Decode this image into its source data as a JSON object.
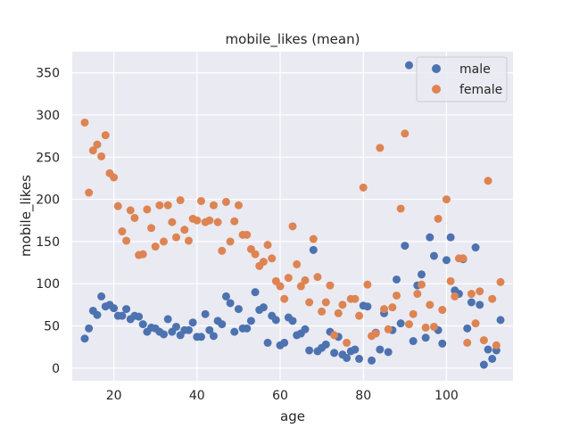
{
  "chart_data": {
    "type": "scatter",
    "title": "mobile_likes (mean)",
    "xlabel": "age",
    "ylabel": "mobile_likes",
    "xlim": [
      10,
      116
    ],
    "ylim": [
      -15,
      375
    ],
    "xticks": [
      20,
      40,
      60,
      80,
      100
    ],
    "yticks": [
      0,
      50,
      100,
      150,
      200,
      250,
      300,
      350
    ],
    "grid": true,
    "legend_position": "top-right",
    "background_color": "#eaeaf2",
    "series": [
      {
        "name": "male",
        "color": "#4c72b0",
        "points": [
          [
            13,
            35
          ],
          [
            14,
            47
          ],
          [
            15,
            68
          ],
          [
            16,
            63
          ],
          [
            17,
            85
          ],
          [
            18,
            73
          ],
          [
            19,
            75
          ],
          [
            20,
            71
          ],
          [
            21,
            62
          ],
          [
            22,
            62
          ],
          [
            23,
            70
          ],
          [
            24,
            58
          ],
          [
            25,
            62
          ],
          [
            26,
            61
          ],
          [
            27,
            52
          ],
          [
            28,
            43
          ],
          [
            29,
            48
          ],
          [
            30,
            47
          ],
          [
            31,
            43
          ],
          [
            32,
            40
          ],
          [
            33,
            58
          ],
          [
            34,
            43
          ],
          [
            35,
            49
          ],
          [
            36,
            39
          ],
          [
            37,
            45
          ],
          [
            38,
            45
          ],
          [
            39,
            54
          ],
          [
            40,
            37
          ],
          [
            41,
            37
          ],
          [
            42,
            64
          ],
          [
            43,
            45
          ],
          [
            44,
            38
          ],
          [
            45,
            56
          ],
          [
            46,
            52
          ],
          [
            47,
            85
          ],
          [
            48,
            77
          ],
          [
            49,
            43
          ],
          [
            50,
            70
          ],
          [
            51,
            47
          ],
          [
            52,
            47
          ],
          [
            53,
            56
          ],
          [
            54,
            90
          ],
          [
            55,
            69
          ],
          [
            56,
            72
          ],
          [
            57,
            30
          ],
          [
            58,
            62
          ],
          [
            59,
            57
          ],
          [
            60,
            27
          ],
          [
            61,
            30
          ],
          [
            62,
            60
          ],
          [
            63,
            56
          ],
          [
            64,
            39
          ],
          [
            65,
            41
          ],
          [
            66,
            46
          ],
          [
            67,
            21
          ],
          [
            68,
            140
          ],
          [
            69,
            20
          ],
          [
            70,
            24
          ],
          [
            71,
            28
          ],
          [
            72,
            43
          ],
          [
            73,
            18
          ],
          [
            74,
            37
          ],
          [
            75,
            16
          ],
          [
            76,
            12
          ],
          [
            77,
            20
          ],
          [
            78,
            22
          ],
          [
            79,
            11
          ],
          [
            80,
            74
          ],
          [
            81,
            73
          ],
          [
            82,
            9
          ],
          [
            83,
            42
          ],
          [
            84,
            22
          ],
          [
            85,
            65
          ],
          [
            86,
            19
          ],
          [
            87,
            45
          ],
          [
            88,
            105
          ],
          [
            89,
            53
          ],
          [
            90,
            145
          ],
          [
            91,
            359
          ],
          [
            92,
            32
          ],
          [
            93,
            98
          ],
          [
            94,
            111
          ],
          [
            95,
            36
          ],
          [
            96,
            155
          ],
          [
            97,
            133
          ],
          [
            98,
            45
          ],
          [
            99,
            29
          ],
          [
            100,
            128
          ],
          [
            101,
            155
          ],
          [
            102,
            92
          ],
          [
            103,
            88
          ],
          [
            104,
            129
          ],
          [
            105,
            47
          ],
          [
            106,
            78
          ],
          [
            107,
            143
          ],
          [
            108,
            75
          ],
          [
            109,
            4
          ],
          [
            110,
            22
          ],
          [
            111,
            11
          ],
          [
            112,
            21
          ],
          [
            113,
            57
          ]
        ]
      },
      {
        "name": "female",
        "color": "#dd8452",
        "points": [
          [
            13,
            291
          ],
          [
            14,
            208
          ],
          [
            15,
            258
          ],
          [
            16,
            265
          ],
          [
            17,
            251
          ],
          [
            18,
            276
          ],
          [
            19,
            231
          ],
          [
            20,
            226
          ],
          [
            21,
            192
          ],
          [
            22,
            162
          ],
          [
            23,
            151
          ],
          [
            24,
            187
          ],
          [
            25,
            178
          ],
          [
            26,
            134
          ],
          [
            27,
            135
          ],
          [
            28,
            188
          ],
          [
            29,
            166
          ],
          [
            30,
            144
          ],
          [
            31,
            193
          ],
          [
            32,
            150
          ],
          [
            33,
            193
          ],
          [
            34,
            173
          ],
          [
            35,
            155
          ],
          [
            36,
            199
          ],
          [
            37,
            164
          ],
          [
            38,
            151
          ],
          [
            39,
            177
          ],
          [
            40,
            175
          ],
          [
            41,
            198
          ],
          [
            42,
            173
          ],
          [
            43,
            175
          ],
          [
            44,
            193
          ],
          [
            45,
            173
          ],
          [
            46,
            139
          ],
          [
            47,
            197
          ],
          [
            48,
            150
          ],
          [
            49,
            174
          ],
          [
            50,
            193
          ],
          [
            51,
            158
          ],
          [
            52,
            158
          ],
          [
            53,
            141
          ],
          [
            54,
            135
          ],
          [
            55,
            121
          ],
          [
            56,
            126
          ],
          [
            57,
            146
          ],
          [
            58,
            130
          ],
          [
            59,
            103
          ],
          [
            60,
            97
          ],
          [
            61,
            82
          ],
          [
            62,
            107
          ],
          [
            63,
            168
          ],
          [
            64,
            123
          ],
          [
            65,
            97
          ],
          [
            66,
            104
          ],
          [
            67,
            78
          ],
          [
            68,
            153
          ],
          [
            69,
            108
          ],
          [
            70,
            67
          ],
          [
            71,
            78
          ],
          [
            72,
            98
          ],
          [
            73,
            39
          ],
          [
            74,
            65
          ],
          [
            75,
            75
          ],
          [
            76,
            30
          ],
          [
            77,
            82
          ],
          [
            78,
            82
          ],
          [
            79,
            62
          ],
          [
            80,
            214
          ],
          [
            81,
            99
          ],
          [
            82,
            38
          ],
          [
            83,
            41
          ],
          [
            84,
            261
          ],
          [
            85,
            70
          ],
          [
            86,
            46
          ],
          [
            87,
            72
          ],
          [
            88,
            86
          ],
          [
            89,
            189
          ],
          [
            90,
            278
          ],
          [
            91,
            52
          ],
          [
            92,
            64
          ],
          [
            93,
            88
          ],
          [
            94,
            99
          ],
          [
            95,
            48
          ],
          [
            96,
            75
          ],
          [
            97,
            49
          ],
          [
            98,
            177
          ],
          [
            99,
            69
          ],
          [
            100,
            200
          ],
          [
            101,
            103
          ],
          [
            102,
            85
          ],
          [
            103,
            130
          ],
          [
            104,
            130
          ],
          [
            105,
            30
          ],
          [
            106,
            88
          ],
          [
            107,
            53
          ],
          [
            108,
            91
          ],
          [
            109,
            33
          ],
          [
            110,
            222
          ],
          [
            111,
            82
          ],
          [
            112,
            27
          ],
          [
            113,
            102
          ]
        ]
      }
    ]
  }
}
